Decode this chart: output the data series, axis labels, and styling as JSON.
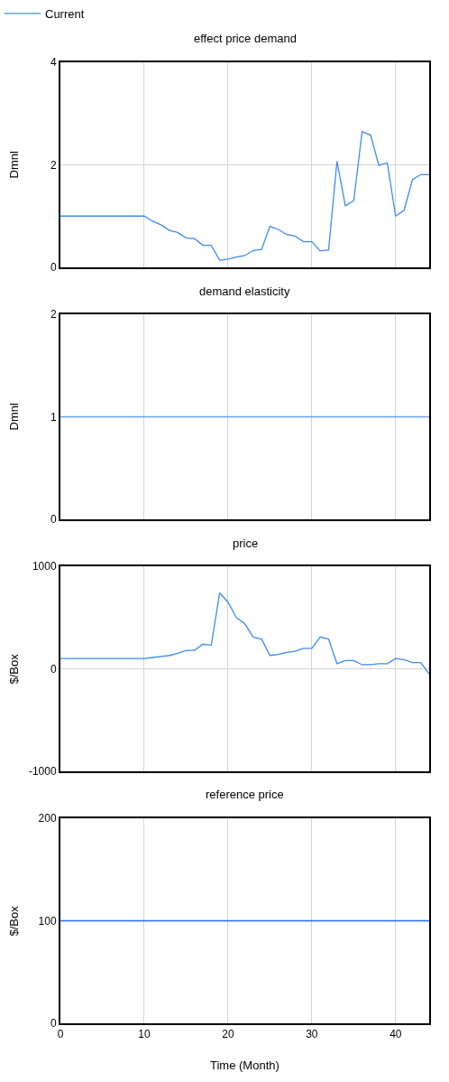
{
  "chart_data": [
    {
      "type": "line",
      "title": "effect price demand",
      "ylabel": "Dmnl",
      "x": [
        0,
        1,
        2,
        3,
        4,
        5,
        6,
        7,
        8,
        9,
        10,
        11,
        12,
        13,
        14,
        15,
        16,
        17,
        18,
        19,
        20,
        21,
        22,
        23,
        24,
        25,
        26,
        27,
        28,
        29,
        30,
        31,
        32,
        33,
        34,
        35,
        36,
        37,
        38,
        39,
        40,
        41,
        42,
        43,
        44
      ],
      "series": [
        {
          "name": "Current",
          "color": "#3d8bf2",
          "values": [
            1,
            1,
            1,
            1,
            1,
            1,
            1,
            1,
            1,
            1,
            1,
            0.9,
            0.83,
            0.72,
            0.68,
            0.57,
            0.56,
            0.43,
            0.43,
            0.14,
            0.16,
            0.2,
            0.23,
            0.33,
            0.35,
            0.8,
            0.74,
            0.64,
            0.61,
            0.5,
            0.5,
            0.32,
            0.34,
            2.07,
            1.2,
            1.3,
            2.65,
            2.58,
            1.99,
            2.04,
            1.0,
            1.11,
            1.71,
            1.81,
            1.81
          ]
        }
      ],
      "xlim": [
        0,
        44
      ],
      "xticks": [
        0,
        10,
        20,
        30,
        40
      ],
      "ylim": [
        0,
        4
      ],
      "yticks": [
        0,
        2,
        4
      ],
      "grid": true,
      "legend": "top left",
      "tick_labels": "y"
    },
    {
      "type": "line",
      "title": "demand elasticity",
      "ylabel": "Dmnl",
      "x": [
        0,
        44
      ],
      "series": [
        {
          "color": "#6d9ee6",
          "values": [
            1,
            1
          ]
        }
      ],
      "xlim": [
        0,
        44
      ],
      "xticks": [
        0,
        10,
        20,
        30,
        40
      ],
      "ylim": [
        0,
        2
      ],
      "yticks": [
        0,
        1,
        2
      ],
      "grid": true,
      "tick_labels": "y"
    },
    {
      "type": "line",
      "title": "price",
      "ylabel": "$/Box",
      "x": [
        0,
        1,
        2,
        3,
        4,
        5,
        6,
        7,
        8,
        9,
        10,
        11,
        12,
        13,
        14,
        15,
        16,
        17,
        18,
        19,
        20,
        21,
        22,
        23,
        24,
        25,
        26,
        27,
        28,
        29,
        30,
        31,
        32,
        33,
        34,
        35,
        36,
        37,
        38,
        39,
        40,
        41,
        42,
        43,
        44
      ],
      "series": [
        {
          "color": "#3d8bf2",
          "values": [
            100,
            100,
            100,
            100,
            100,
            100,
            100,
            100,
            100,
            100,
            100,
            110,
            120,
            130,
            150,
            180,
            180,
            240,
            230,
            740,
            650,
            500,
            440,
            310,
            290,
            130,
            140,
            160,
            170,
            200,
            200,
            310,
            290,
            50,
            80,
            80,
            40,
            40,
            50,
            50,
            100,
            90,
            60,
            60,
            -50
          ]
        }
      ],
      "xlim": [
        0,
        44
      ],
      "xticks": [
        0,
        10,
        20,
        30,
        40
      ],
      "ylim": [
        -1000,
        1000
      ],
      "yticks": [
        -1000,
        0,
        1000
      ],
      "grid": true,
      "tick_labels": "y"
    },
    {
      "type": "line",
      "title": "reference price",
      "ylabel": "$/Box",
      "xlabel": "Time (Month)",
      "x": [
        0,
        44
      ],
      "series": [
        {
          "color": "#1a6ef5",
          "values": [
            100,
            100
          ]
        }
      ],
      "xlim": [
        0,
        44
      ],
      "xticks": [
        0,
        10,
        20,
        30,
        40
      ],
      "ylim": [
        0,
        200
      ],
      "yticks": [
        0,
        100,
        200
      ],
      "grid": true
    }
  ]
}
